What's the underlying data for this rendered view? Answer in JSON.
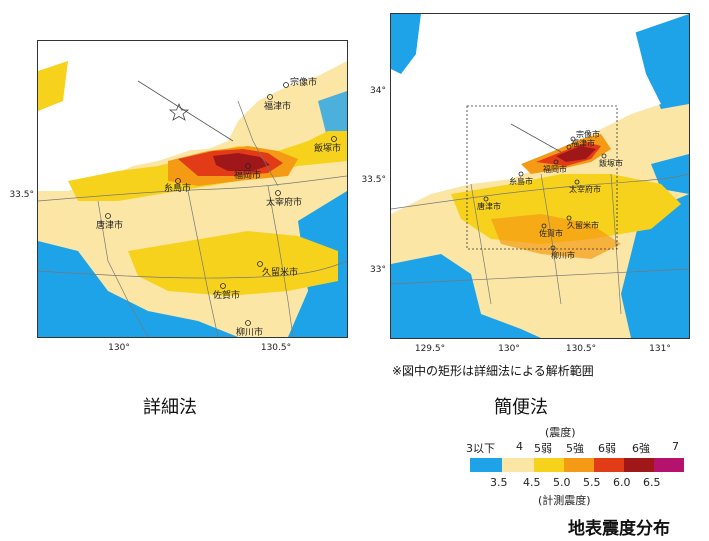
{
  "colors": {
    "le35": "#1fa3e8",
    "b35_45": "#fbe6a6",
    "b45_50": "#f7d21c",
    "b50_55": "#f59a14",
    "b55_60": "#e23b17",
    "b60_65": "#a0171a",
    "gt65": "#b4126c",
    "sea": "#ffffff",
    "border": "#777777"
  },
  "left_map": {
    "method": "詳細法",
    "y_ticks": [
      "33.5°"
    ],
    "x_ticks": [
      "130°",
      "130.5°"
    ],
    "cities": [
      "宗像市",
      "福津市",
      "飯塚市",
      "福岡市",
      "糸島市",
      "太宰府市",
      "唐津市",
      "久留米市",
      "佐賀市",
      "柳川市"
    ]
  },
  "right_map": {
    "method": "簡便法",
    "y_ticks": [
      "34°",
      "33.5°",
      "33°"
    ],
    "x_ticks": [
      "129.5°",
      "130°",
      "130.5°",
      "131°"
    ],
    "cities": [
      "宗像市",
      "福津市",
      "飯塚市",
      "福岡市",
      "糸島市",
      "太宰府市",
      "唐津市",
      "久留米市",
      "佐賀市",
      "柳川市"
    ],
    "note": "※図中の矩形は詳細法による解析範囲"
  },
  "legend": {
    "top_title": "(震度)",
    "intensity_labels": [
      "3以下",
      "4",
      "5弱",
      "5強",
      "6弱",
      "6強",
      "7"
    ],
    "scale_values": [
      "3.5",
      "4.5",
      "5.0",
      "5.5",
      "6.0",
      "6.5"
    ],
    "bottom_title": "(計測震度)"
  },
  "figure_title": "地表震度分布"
}
